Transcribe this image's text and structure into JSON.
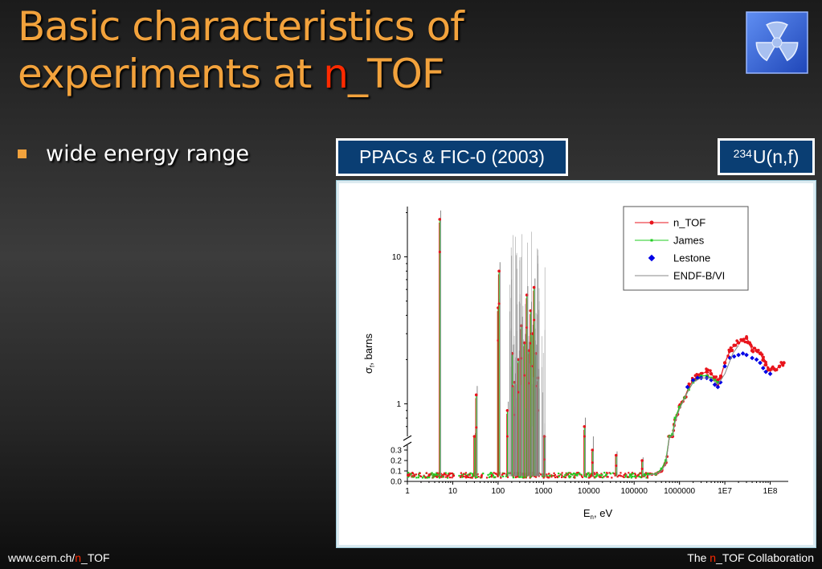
{
  "slide": {
    "title_line1": "Basic characteristics of",
    "title_line2_prefix": "experiments at ",
    "title_line2_highlight": "n",
    "title_line2_suffix": "_TOF",
    "bullet": "wide energy range",
    "box_left": "PPACs & FIC-0 (2003)",
    "box_right_sup": "234",
    "box_right_text": "U(n,f)",
    "footer_left_pre": "www.cern.ch/",
    "footer_left_hl": "n",
    "footer_left_post": "_TOF",
    "footer_right_pre": "The ",
    "footer_right_hl": "n",
    "footer_right_post": "_TOF Collaboration",
    "accent_color": "#f2a23c",
    "highlight_color": "#ff2a00",
    "box_color": "#0a3e73",
    "logo_icon": "radiation-trefoil-icon"
  },
  "chart_data": {
    "type": "scatter",
    "xlabel_main": "E",
    "xlabel_sub": "n",
    "xlabel_tail": ", eV",
    "ylabel_main": "σ",
    "ylabel_sub": "f",
    "ylabel_tail": ", barns",
    "x_scale": "log",
    "xlim": [
      1,
      250000000
    ],
    "x_ticks": [
      "1",
      "10",
      "100",
      "1000",
      "10000",
      "100000",
      "1000000",
      "1E7",
      "1E8"
    ],
    "x_tick_values": [
      1,
      10,
      100,
      1000,
      10000,
      100000,
      1000000,
      10000000,
      100000000
    ],
    "y_scale": "broken: linear 0–0.3, log 0.6–22",
    "y_ticks_lower": [
      "0.0",
      "0.1",
      "0.2",
      "0.3"
    ],
    "y_ticks_upper": [
      "1",
      "10"
    ],
    "legend_position": "top-right",
    "legend": [
      "n_TOF",
      "James",
      "Lestone",
      "ENDF-B/VI"
    ],
    "series_colors": [
      "#e8141c",
      "#22cc22",
      "#0000e6",
      "#888888"
    ],
    "resonances": [
      {
        "x": 5.16,
        "y": 18
      },
      {
        "x": 30,
        "y": 0.55
      },
      {
        "x": 33,
        "y": 1.15
      },
      {
        "x": 100,
        "y": 4.5
      },
      {
        "x": 105,
        "y": 8
      },
      {
        "x": 160,
        "y": 0.9
      },
      {
        "x": 205,
        "y": 2.2
      },
      {
        "x": 230,
        "y": 1.4
      },
      {
        "x": 280,
        "y": 2.0
      },
      {
        "x": 325,
        "y": 3.4
      },
      {
        "x": 380,
        "y": 2.6
      },
      {
        "x": 430,
        "y": 5.5
      },
      {
        "x": 470,
        "y": 2.3
      },
      {
        "x": 520,
        "y": 4.3
      },
      {
        "x": 560,
        "y": 3.0
      },
      {
        "x": 620,
        "y": 6.2
      },
      {
        "x": 680,
        "y": 2.2
      },
      {
        "x": 760,
        "y": 1.5
      },
      {
        "x": 1050,
        "y": 0.35
      },
      {
        "x": 8000,
        "y": 0.7
      },
      {
        "x": 12000,
        "y": 0.3
      },
      {
        "x": 40000,
        "y": 0.25
      },
      {
        "x": 150000,
        "y": 0.2
      }
    ],
    "series": [
      {
        "name": "n_TOF",
        "x": [
          200000,
          300000,
          400000,
          500000,
          600000,
          700000,
          800000,
          1000000,
          1300000,
          1600000,
          2000000,
          2500000,
          3000000,
          4000000,
          5000000,
          6000000,
          7000000,
          8000000,
          10000000,
          13000000,
          16000000,
          20000000,
          25000000,
          30000000,
          35000000,
          40000000,
          50000000,
          60000000,
          70000000,
          80000000,
          100000000,
          130000000,
          160000000,
          200000000
        ],
        "y": [
          0.07,
          0.07,
          0.1,
          0.18,
          0.35,
          0.6,
          0.78,
          0.95,
          1.1,
          1.3,
          1.45,
          1.55,
          1.6,
          1.65,
          1.6,
          1.5,
          1.4,
          1.5,
          1.9,
          2.3,
          2.5,
          2.6,
          2.7,
          2.8,
          2.6,
          2.3,
          2.3,
          2.2,
          2.0,
          1.85,
          1.7,
          1.7,
          1.8,
          1.9
        ]
      },
      {
        "name": "James",
        "x": [
          200000,
          300000,
          400000,
          500000,
          600000,
          700000,
          800000,
          1000000,
          1300000,
          1600000,
          2000000,
          2500000,
          3000000,
          4000000,
          5000000,
          6000000,
          7000000
        ],
        "y": [
          0.07,
          0.07,
          0.12,
          0.2,
          0.38,
          0.62,
          0.8,
          0.95,
          1.1,
          1.25,
          1.4,
          1.5,
          1.55,
          1.55,
          1.5,
          1.45,
          1.4
        ]
      },
      {
        "name": "Lestone",
        "x": [
          1500000,
          2000000,
          2500000,
          3000000,
          4000000,
          5000000,
          6000000,
          7000000,
          8000000,
          10000000,
          13000000,
          16000000,
          20000000,
          25000000,
          30000000,
          40000000,
          50000000,
          60000000,
          70000000,
          80000000,
          100000000
        ],
        "y": [
          1.3,
          1.45,
          1.5,
          1.5,
          1.5,
          1.45,
          1.35,
          1.3,
          1.4,
          1.8,
          2.05,
          2.1,
          2.15,
          2.2,
          2.15,
          2.05,
          2.0,
          1.9,
          1.75,
          1.65,
          1.6
        ]
      },
      {
        "name": "ENDF-B/VI",
        "x": [
          200000,
          300000,
          400000,
          500000,
          600000,
          700000,
          800000,
          1000000,
          1500000,
          2000000,
          3000000,
          5000000,
          7000000,
          10000000,
          15000000,
          20000000
        ],
        "y": [
          0.06,
          0.07,
          0.1,
          0.17,
          0.33,
          0.58,
          0.75,
          0.92,
          1.2,
          1.4,
          1.5,
          1.5,
          1.35,
          1.6,
          2.2,
          2.5
        ]
      }
    ]
  }
}
